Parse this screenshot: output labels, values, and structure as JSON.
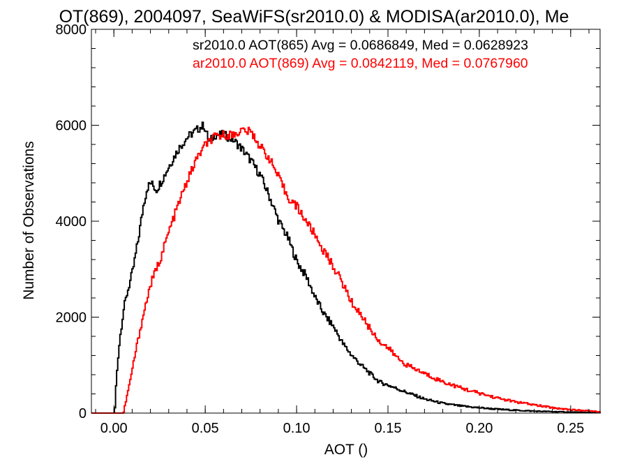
{
  "chart_data": {
    "type": "line",
    "title": "OT(869), 2004097, SeaWiFS(sr2010.0) & MODISA(ar2010.0), Me",
    "xlabel": "AOT ()",
    "ylabel": "Number of Observations",
    "xlim": [
      -0.0123,
      0.2661
    ],
    "ylim": [
      0,
      8000
    ],
    "x_ticks": [
      0.0,
      0.05,
      0.1,
      0.15,
      0.2,
      0.25
    ],
    "x_tick_labels": [
      "0.00",
      "0.05",
      "0.10",
      "0.15",
      "0.20",
      "0.25"
    ],
    "y_ticks": [
      0,
      2000,
      4000,
      6000,
      8000
    ],
    "y_tick_labels": [
      "0",
      "2000",
      "4000",
      "6000",
      "8000"
    ],
    "grid": false,
    "legend_position": "top-right",
    "step": true,
    "series": [
      {
        "name": "sr2010.0 AOT(865) Avg = 0.0686849, Med = 0.0628923",
        "color": "#000000",
        "x": [
          -0.005,
          0.0,
          0.0005,
          0.001,
          0.002,
          0.003,
          0.005,
          0.007,
          0.01,
          0.013,
          0.016,
          0.018,
          0.02,
          0.023,
          0.026,
          0.03,
          0.035,
          0.04,
          0.045,
          0.049,
          0.052,
          0.055,
          0.06,
          0.065,
          0.07,
          0.075,
          0.08,
          0.085,
          0.09,
          0.095,
          0.1,
          0.105,
          0.11,
          0.115,
          0.12,
          0.125,
          0.13,
          0.135,
          0.14,
          0.145,
          0.15,
          0.16,
          0.17,
          0.18,
          0.19,
          0.2,
          0.21,
          0.22,
          0.23,
          0.24,
          0.25,
          0.26,
          0.265
        ],
        "values": [
          0,
          0,
          180,
          650,
          1150,
          1550,
          2150,
          2500,
          2950,
          3600,
          4350,
          4700,
          4800,
          4650,
          4850,
          5150,
          5500,
          5750,
          5900,
          6000,
          5650,
          5800,
          5800,
          5700,
          5500,
          5250,
          4950,
          4500,
          4000,
          3650,
          3150,
          2850,
          2400,
          2050,
          1800,
          1450,
          1200,
          1000,
          820,
          650,
          580,
          430,
          290,
          200,
          145,
          110,
          80,
          58,
          40,
          30,
          20,
          12,
          10
        ]
      },
      {
        "name": "ar2010.0 AOT(869) Avg = 0.0842119, Med = 0.0767960",
        "color": "#ff0000",
        "x": [
          -0.005,
          0.0,
          0.003,
          0.005,
          0.006,
          0.008,
          0.01,
          0.012,
          0.015,
          0.018,
          0.02,
          0.025,
          0.03,
          0.035,
          0.04,
          0.045,
          0.05,
          0.055,
          0.06,
          0.065,
          0.07,
          0.075,
          0.08,
          0.085,
          0.09,
          0.095,
          0.1,
          0.105,
          0.11,
          0.115,
          0.12,
          0.125,
          0.13,
          0.135,
          0.14,
          0.145,
          0.15,
          0.155,
          0.16,
          0.17,
          0.18,
          0.19,
          0.2,
          0.21,
          0.22,
          0.23,
          0.24,
          0.25,
          0.26,
          0.265
        ],
        "values": [
          0,
          0,
          0,
          0,
          200,
          550,
          950,
          1350,
          1900,
          2400,
          2700,
          3200,
          3800,
          4350,
          4850,
          5300,
          5600,
          5750,
          5800,
          5800,
          5900,
          5850,
          5550,
          5300,
          4900,
          4500,
          4300,
          4000,
          3700,
          3350,
          3050,
          2700,
          2300,
          2050,
          1750,
          1500,
          1350,
          1150,
          1000,
          820,
          650,
          520,
          410,
          310,
          230,
          170,
          110,
          70,
          45,
          30
        ]
      }
    ]
  }
}
